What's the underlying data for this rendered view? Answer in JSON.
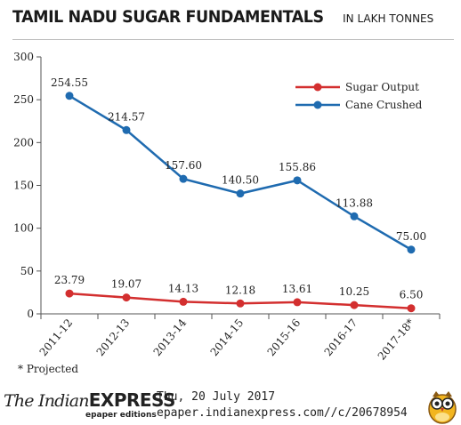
{
  "header": {
    "title": "TAMIL NADU SUGAR FUNDAMENTALS",
    "subtitle": "IN LAKH TONNES"
  },
  "chart_data": {
    "type": "line",
    "title": "TAMIL NADU SUGAR FUNDAMENTALS",
    "subtitle": "IN LAKH TONNES",
    "categories": [
      "2011-12",
      "2012-13",
      "2013-14",
      "2014-15",
      "2015-16",
      "2016-17",
      "2017-18*"
    ],
    "ylim": [
      0,
      300
    ],
    "yticks": [
      0,
      50,
      100,
      150,
      200,
      250,
      300
    ],
    "grid": false,
    "legend_position": "top-right",
    "series": [
      {
        "name": "Sugar Output",
        "color": "#d32f2f",
        "values": [
          23.79,
          19.07,
          14.13,
          12.18,
          13.61,
          10.25,
          6.5
        ],
        "labels": [
          "23.79",
          "19.07",
          "14.13",
          "12.18",
          "13.61",
          "10.25",
          "6.50"
        ]
      },
      {
        "name": "Cane Crushed",
        "color": "#1f6bb0",
        "values": [
          254.55,
          214.57,
          157.6,
          140.5,
          155.86,
          113.88,
          75.0
        ],
        "labels": [
          "254.55",
          "214.57",
          "157.60",
          "140.50",
          "155.86",
          "113.88",
          "75.00"
        ]
      }
    ]
  },
  "footnote": "* Projected",
  "footer": {
    "brand_the": "The Indian",
    "brand_express": "EXPRESS",
    "brand_epaper": "epaper editions",
    "date": "Thu, 20 July 2017",
    "url": "epaper.indianexpress.com//c/20678954",
    "logo_icon": "owl-icon"
  }
}
